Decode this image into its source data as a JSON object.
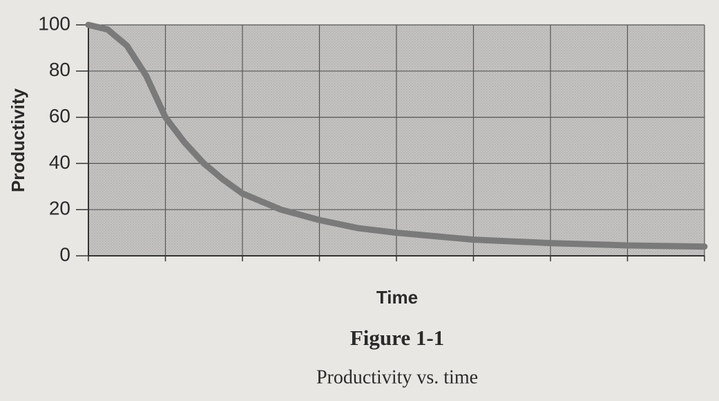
{
  "chart_data": {
    "type": "line",
    "figure_label": "Figure 1-1",
    "caption": "Productivity vs. time",
    "xlabel": "Time",
    "ylabel": "Productivity",
    "x": [
      0,
      0.25,
      0.5,
      0.75,
      1,
      1.25,
      1.5,
      1.75,
      2,
      2.5,
      3,
      3.5,
      4,
      4.5,
      5,
      6,
      7,
      8
    ],
    "series": [
      {
        "name": "Productivity",
        "color": "#7a7a7a",
        "values": [
          100,
          98,
          91,
          78,
          60,
          49,
          40,
          33,
          27,
          20,
          15.5,
          12,
          10,
          8.5,
          7,
          5.5,
          4.5,
          4
        ]
      }
    ],
    "xlim": [
      0,
      8
    ],
    "ylim": [
      0,
      100
    ],
    "yticks": [
      0,
      20,
      40,
      60,
      80,
      100
    ],
    "grid": true
  }
}
